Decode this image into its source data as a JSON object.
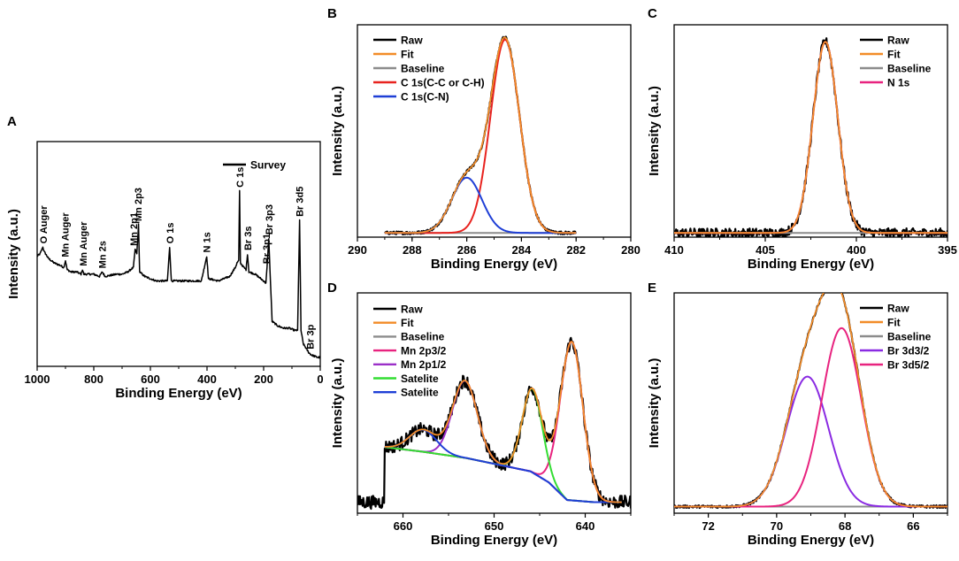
{
  "chart_data": [
    {
      "id": "A",
      "panel_label": "A",
      "type": "line",
      "xlabel": "Binding Energy (eV)",
      "ylabel": "Intensity (a.u.)",
      "xlim": [
        1000,
        0
      ],
      "ylim": [
        0,
        1
      ],
      "xticks": [
        1000,
        800,
        600,
        400,
        200,
        0
      ],
      "legend": [
        {
          "name": "Survey",
          "color": "#000000"
        }
      ],
      "series": [
        {
          "name": "Survey",
          "color": "#000000",
          "noise": 0.004,
          "points": [
            [
              1000,
              0.49
            ],
            [
              990,
              0.5
            ],
            [
              980,
              0.53
            ],
            [
              975,
              0.51
            ],
            [
              960,
              0.48
            ],
            [
              940,
              0.46
            ],
            [
              920,
              0.45
            ],
            [
              906,
              0.44
            ],
            [
              900,
              0.47
            ],
            [
              894,
              0.43
            ],
            [
              880,
              0.42
            ],
            [
              860,
              0.42
            ],
            [
              845,
              0.41
            ],
            [
              840,
              0.43
            ],
            [
              835,
              0.41
            ],
            [
              800,
              0.41
            ],
            [
              780,
              0.4
            ],
            [
              770,
              0.42
            ],
            [
              760,
              0.4
            ],
            [
              720,
              0.41
            ],
            [
              700,
              0.41
            ],
            [
              680,
              0.42
            ],
            [
              660,
              0.44
            ],
            [
              654,
              0.52
            ],
            [
              648,
              0.5
            ],
            [
              642,
              0.63
            ],
            [
              638,
              0.42
            ],
            [
              620,
              0.4
            ],
            [
              600,
              0.39
            ],
            [
              580,
              0.38
            ],
            [
              560,
              0.38
            ],
            [
              540,
              0.38
            ],
            [
              532,
              0.53
            ],
            [
              526,
              0.38
            ],
            [
              500,
              0.38
            ],
            [
              480,
              0.38
            ],
            [
              460,
              0.38
            ],
            [
              440,
              0.38
            ],
            [
              420,
              0.38
            ],
            [
              401,
              0.49
            ],
            [
              395,
              0.39
            ],
            [
              360,
              0.38
            ],
            [
              340,
              0.39
            ],
            [
              320,
              0.4
            ],
            [
              300,
              0.44
            ],
            [
              294,
              0.46
            ],
            [
              288,
              0.47
            ],
            [
              285,
              0.78
            ],
            [
              282,
              0.46
            ],
            [
              270,
              0.44
            ],
            [
              262,
              0.43
            ],
            [
              257,
              0.5
            ],
            [
              252,
              0.42
            ],
            [
              230,
              0.41
            ],
            [
              210,
              0.39
            ],
            [
              200,
              0.38
            ],
            [
              192,
              0.37
            ],
            [
              188,
              0.44
            ],
            [
              182,
              0.57
            ],
            [
              176,
              0.38
            ],
            [
              170,
              0.2
            ],
            [
              150,
              0.18
            ],
            [
              130,
              0.17
            ],
            [
              110,
              0.17
            ],
            [
              90,
              0.16
            ],
            [
              80,
              0.16
            ],
            [
              73,
              0.65
            ],
            [
              68,
              0.16
            ],
            [
              60,
              0.1
            ],
            [
              50,
              0.08
            ],
            [
              40,
              0.06
            ],
            [
              30,
              0.05
            ],
            [
              20,
              0.045
            ],
            [
              10,
              0.04
            ],
            [
              0,
              0.04
            ]
          ]
        }
      ],
      "annotations": [
        {
          "text": "O Auger",
          "x": 978,
          "y": 0.53
        },
        {
          "text": "Mn Auger",
          "x": 901,
          "y": 0.47
        },
        {
          "text": "Mn Auger",
          "x": 838,
          "y": 0.43
        },
        {
          "text": "Mn 2s",
          "x": 770,
          "y": 0.42
        },
        {
          "text": "Mn 2p1",
          "x": 660,
          "y": 0.52
        },
        {
          "text": "Mn 2p3",
          "x": 643,
          "y": 0.63
        },
        {
          "text": "O 1s",
          "x": 532,
          "y": 0.53
        },
        {
          "text": "N 1s",
          "x": 401,
          "y": 0.49
        },
        {
          "text": "C 1s",
          "x": 285,
          "y": 0.78
        },
        {
          "text": "Br 3s",
          "x": 257,
          "y": 0.5
        },
        {
          "text": "Br 3p1",
          "x": 190,
          "y": 0.44
        },
        {
          "text": "Br 3p3",
          "x": 182,
          "y": 0.57
        },
        {
          "text": "Br 3d5",
          "x": 73,
          "y": 0.65
        },
        {
          "text": "Br 3p",
          "x": 36,
          "y": 0.06
        }
      ]
    },
    {
      "id": "B",
      "panel_label": "B",
      "type": "line",
      "xlabel": "Binding Energy (eV)",
      "ylabel": "Intensity (a.u.)",
      "xlim": [
        290,
        280
      ],
      "ylim": [
        0,
        1
      ],
      "xticks": [
        290,
        288,
        286,
        284,
        282,
        280
      ],
      "legend": [
        {
          "name": "Raw",
          "color": "#000000"
        },
        {
          "name": "Fit",
          "color": "#f28c28"
        },
        {
          "name": "Baseline",
          "color": "#8c8c8c"
        },
        {
          "name": "C 1s(C-C or C-H)",
          "color": "#e8231f"
        },
        {
          "name": "C 1s(C-N)",
          "color": "#1f3fd6"
        }
      ],
      "x_range": [
        289,
        282
      ],
      "baseline": 0.02,
      "peaks": [
        {
          "name": "C 1s(C-C or C-H)",
          "center": 284.6,
          "fwhm": 1.25,
          "amp": 0.91,
          "color": "#e8231f"
        },
        {
          "name": "C 1s(C-N)",
          "center": 286.0,
          "fwhm": 1.3,
          "amp": 0.26,
          "color": "#1f3fd6"
        }
      ],
      "noise": 0.007
    },
    {
      "id": "C",
      "panel_label": "C",
      "type": "line",
      "xlabel": "Binding Energy (eV)",
      "ylabel": "Intensity (a.u.)",
      "xlim": [
        410,
        395
      ],
      "ylim": [
        0,
        1
      ],
      "xticks": [
        410,
        405,
        400,
        395
      ],
      "legend": [
        {
          "name": "Raw",
          "color": "#000000"
        },
        {
          "name": "Fit",
          "color": "#f28c28"
        },
        {
          "name": "Baseline",
          "color": "#8c8c8c"
        },
        {
          "name": "N 1s",
          "color": "#e8237f"
        }
      ],
      "x_range": [
        410,
        395
      ],
      "baseline": 0.02,
      "peaks": [
        {
          "name": "N 1s",
          "center": 401.7,
          "fwhm": 1.6,
          "amp": 0.9,
          "color": "#e8237f"
        }
      ],
      "noise": 0.022
    },
    {
      "id": "D",
      "panel_label": "D",
      "type": "line",
      "xlabel": "Binding Energy (eV)",
      "ylabel": "Intensity (a.u.)",
      "xlim": [
        665,
        635
      ],
      "ylim": [
        0,
        1
      ],
      "xticks": [
        660,
        650,
        640
      ],
      "legend": [
        {
          "name": "Raw",
          "color": "#000000"
        },
        {
          "name": "Fit",
          "color": "#f28c28"
        },
        {
          "name": "Baseline",
          "color": "#8c8c8c"
        },
        {
          "name": "Mn 2p3/2",
          "color": "#e8237f"
        },
        {
          "name": "Mn 2p1/2",
          "color": "#9b30c8"
        },
        {
          "name": "Satelite",
          "color": "#33dd33"
        },
        {
          "name": "Satelite",
          "color": "#1f3fd6"
        }
      ],
      "x_range": [
        662,
        636
      ],
      "background_steps": [
        [
          662,
          0.3
        ],
        [
          658,
          0.28
        ],
        [
          653,
          0.25
        ],
        [
          646,
          0.19
        ],
        [
          644,
          0.14
        ],
        [
          642,
          0.06
        ],
        [
          639,
          0.05
        ],
        [
          636,
          0.05
        ]
      ],
      "peaks": [
        {
          "name": "Mn 2p3/2",
          "center": 641.5,
          "fwhm": 2.9,
          "amp": 0.72,
          "color": "#e8237f"
        },
        {
          "name": "Mn 2p1/2",
          "center": 653.2,
          "fwhm": 3.2,
          "amp": 0.35,
          "color": "#9b30c8"
        },
        {
          "name": "Satelite",
          "center": 645.8,
          "fwhm": 2.6,
          "amp": 0.38,
          "color": "#33dd33"
        },
        {
          "name": "Satelite",
          "center": 657.8,
          "fwhm": 3.5,
          "amp": 0.1,
          "color": "#1f3fd6"
        }
      ],
      "raw_x_range": [
        665,
        635
      ],
      "noise": 0.03
    },
    {
      "id": "E",
      "panel_label": "E",
      "type": "line",
      "xlabel": "Binding Energy (eV)",
      "ylabel": "Intensity (a.u.)",
      "xlim": [
        73,
        65
      ],
      "ylim": [
        0,
        1
      ],
      "xticks": [
        72,
        70,
        68,
        66
      ],
      "legend": [
        {
          "name": "Raw",
          "color": "#000000"
        },
        {
          "name": "Fit",
          "color": "#f28c28"
        },
        {
          "name": "Baseline",
          "color": "#8c8c8c"
        },
        {
          "name": "Br 3d3/2",
          "color": "#8a2be2"
        },
        {
          "name": "Br 3d5/2",
          "color": "#e8237f"
        }
      ],
      "x_range": [
        73,
        65
      ],
      "baseline": 0.03,
      "peaks": [
        {
          "name": "Br 3d3/2",
          "center": 69.1,
          "fwhm": 1.45,
          "amp": 0.59,
          "color": "#8a2be2"
        },
        {
          "name": "Br 3d5/2",
          "center": 68.1,
          "fwhm": 1.35,
          "amp": 0.81,
          "color": "#e8237f"
        }
      ],
      "noise": 0.006
    }
  ]
}
